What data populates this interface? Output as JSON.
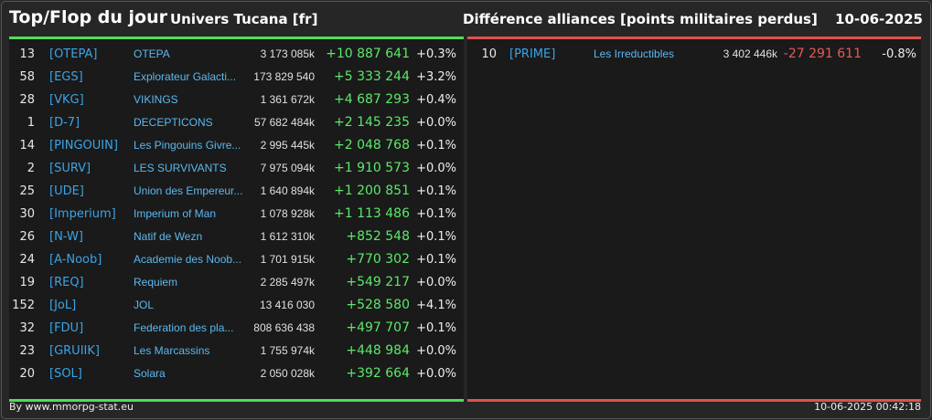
{
  "header": {
    "title": "Top/Flop du jour",
    "universe": "Univers Tucana [fr]",
    "description": "Différence alliances [points militaires perdus]",
    "date": "10-06-2025"
  },
  "top": [
    {
      "rank": "13",
      "tag": "[OTEPA]",
      "name": "OTEPA",
      "points": "3 173 085k",
      "diff": "+10 887 641",
      "pct": "+0.3%"
    },
    {
      "rank": "58",
      "tag": "[EGS]",
      "name": "Explorateur Galacti...",
      "points": "173 829 540",
      "diff": "+5 333 244",
      "pct": "+3.2%"
    },
    {
      "rank": "28",
      "tag": "[VKG]",
      "name": "VIKINGS",
      "points": "1 361 672k",
      "diff": "+4 687 293",
      "pct": "+0.4%"
    },
    {
      "rank": "1",
      "tag": "[D-7]",
      "name": "DECEPTICONS",
      "points": "57 682 484k",
      "diff": "+2 145 235",
      "pct": "+0.0%"
    },
    {
      "rank": "14",
      "tag": "[PINGOUIN]",
      "name": "Les Pingouins Givre...",
      "points": "2 995 445k",
      "diff": "+2 048 768",
      "pct": "+0.1%"
    },
    {
      "rank": "2",
      "tag": "[SURV]",
      "name": "LES SURVIVANTS",
      "points": "7 975 094k",
      "diff": "+1 910 573",
      "pct": "+0.0%"
    },
    {
      "rank": "25",
      "tag": "[UDE]",
      "name": "Union des Empereur...",
      "points": "1 640 894k",
      "diff": "+1 200 851",
      "pct": "+0.1%"
    },
    {
      "rank": "30",
      "tag": "[Imperium]",
      "name": "Imperium of Man",
      "points": "1 078 928k",
      "diff": "+1 113 486",
      "pct": "+0.1%"
    },
    {
      "rank": "26",
      "tag": "[N-W]",
      "name": "Natif de Wezn",
      "points": "1 612 310k",
      "diff": "+852 548",
      "pct": "+0.1%"
    },
    {
      "rank": "24",
      "tag": "[A-Noob]",
      "name": "Academie des Noob...",
      "points": "1 701 915k",
      "diff": "+770 302",
      "pct": "+0.1%"
    },
    {
      "rank": "19",
      "tag": "[REQ]",
      "name": "Requiem",
      "points": "2 285 497k",
      "diff": "+549 217",
      "pct": "+0.0%"
    },
    {
      "rank": "152",
      "tag": "[JoL]",
      "name": "JOL",
      "points": "13 416 030",
      "diff": "+528 580",
      "pct": "+4.1%"
    },
    {
      "rank": "32",
      "tag": "[FDU]",
      "name": "Federation des pla...",
      "points": "808 636 438",
      "diff": "+497 707",
      "pct": "+0.1%"
    },
    {
      "rank": "23",
      "tag": "[GRUIIK]",
      "name": "Les Marcassins",
      "points": "1 755 974k",
      "diff": "+448 984",
      "pct": "+0.0%"
    },
    {
      "rank": "20",
      "tag": "[SOL]",
      "name": "Solara",
      "points": "2 050 028k",
      "diff": "+392 664",
      "pct": "+0.0%"
    }
  ],
  "flop": [
    {
      "rank": "10",
      "tag": "[PRIME]",
      "name": "Les Irreductibles",
      "points": "3 402 446k",
      "diff": "-27 291 611",
      "pct": "-0.8%"
    }
  ],
  "footer": {
    "source": "By www.mmorpg-stat.eu",
    "timestamp": "10-06-2025 00:42:18"
  },
  "colors": {
    "top_accent": "#4fde5a",
    "flop_accent": "#e0524c",
    "link": "#3aa4e8"
  }
}
